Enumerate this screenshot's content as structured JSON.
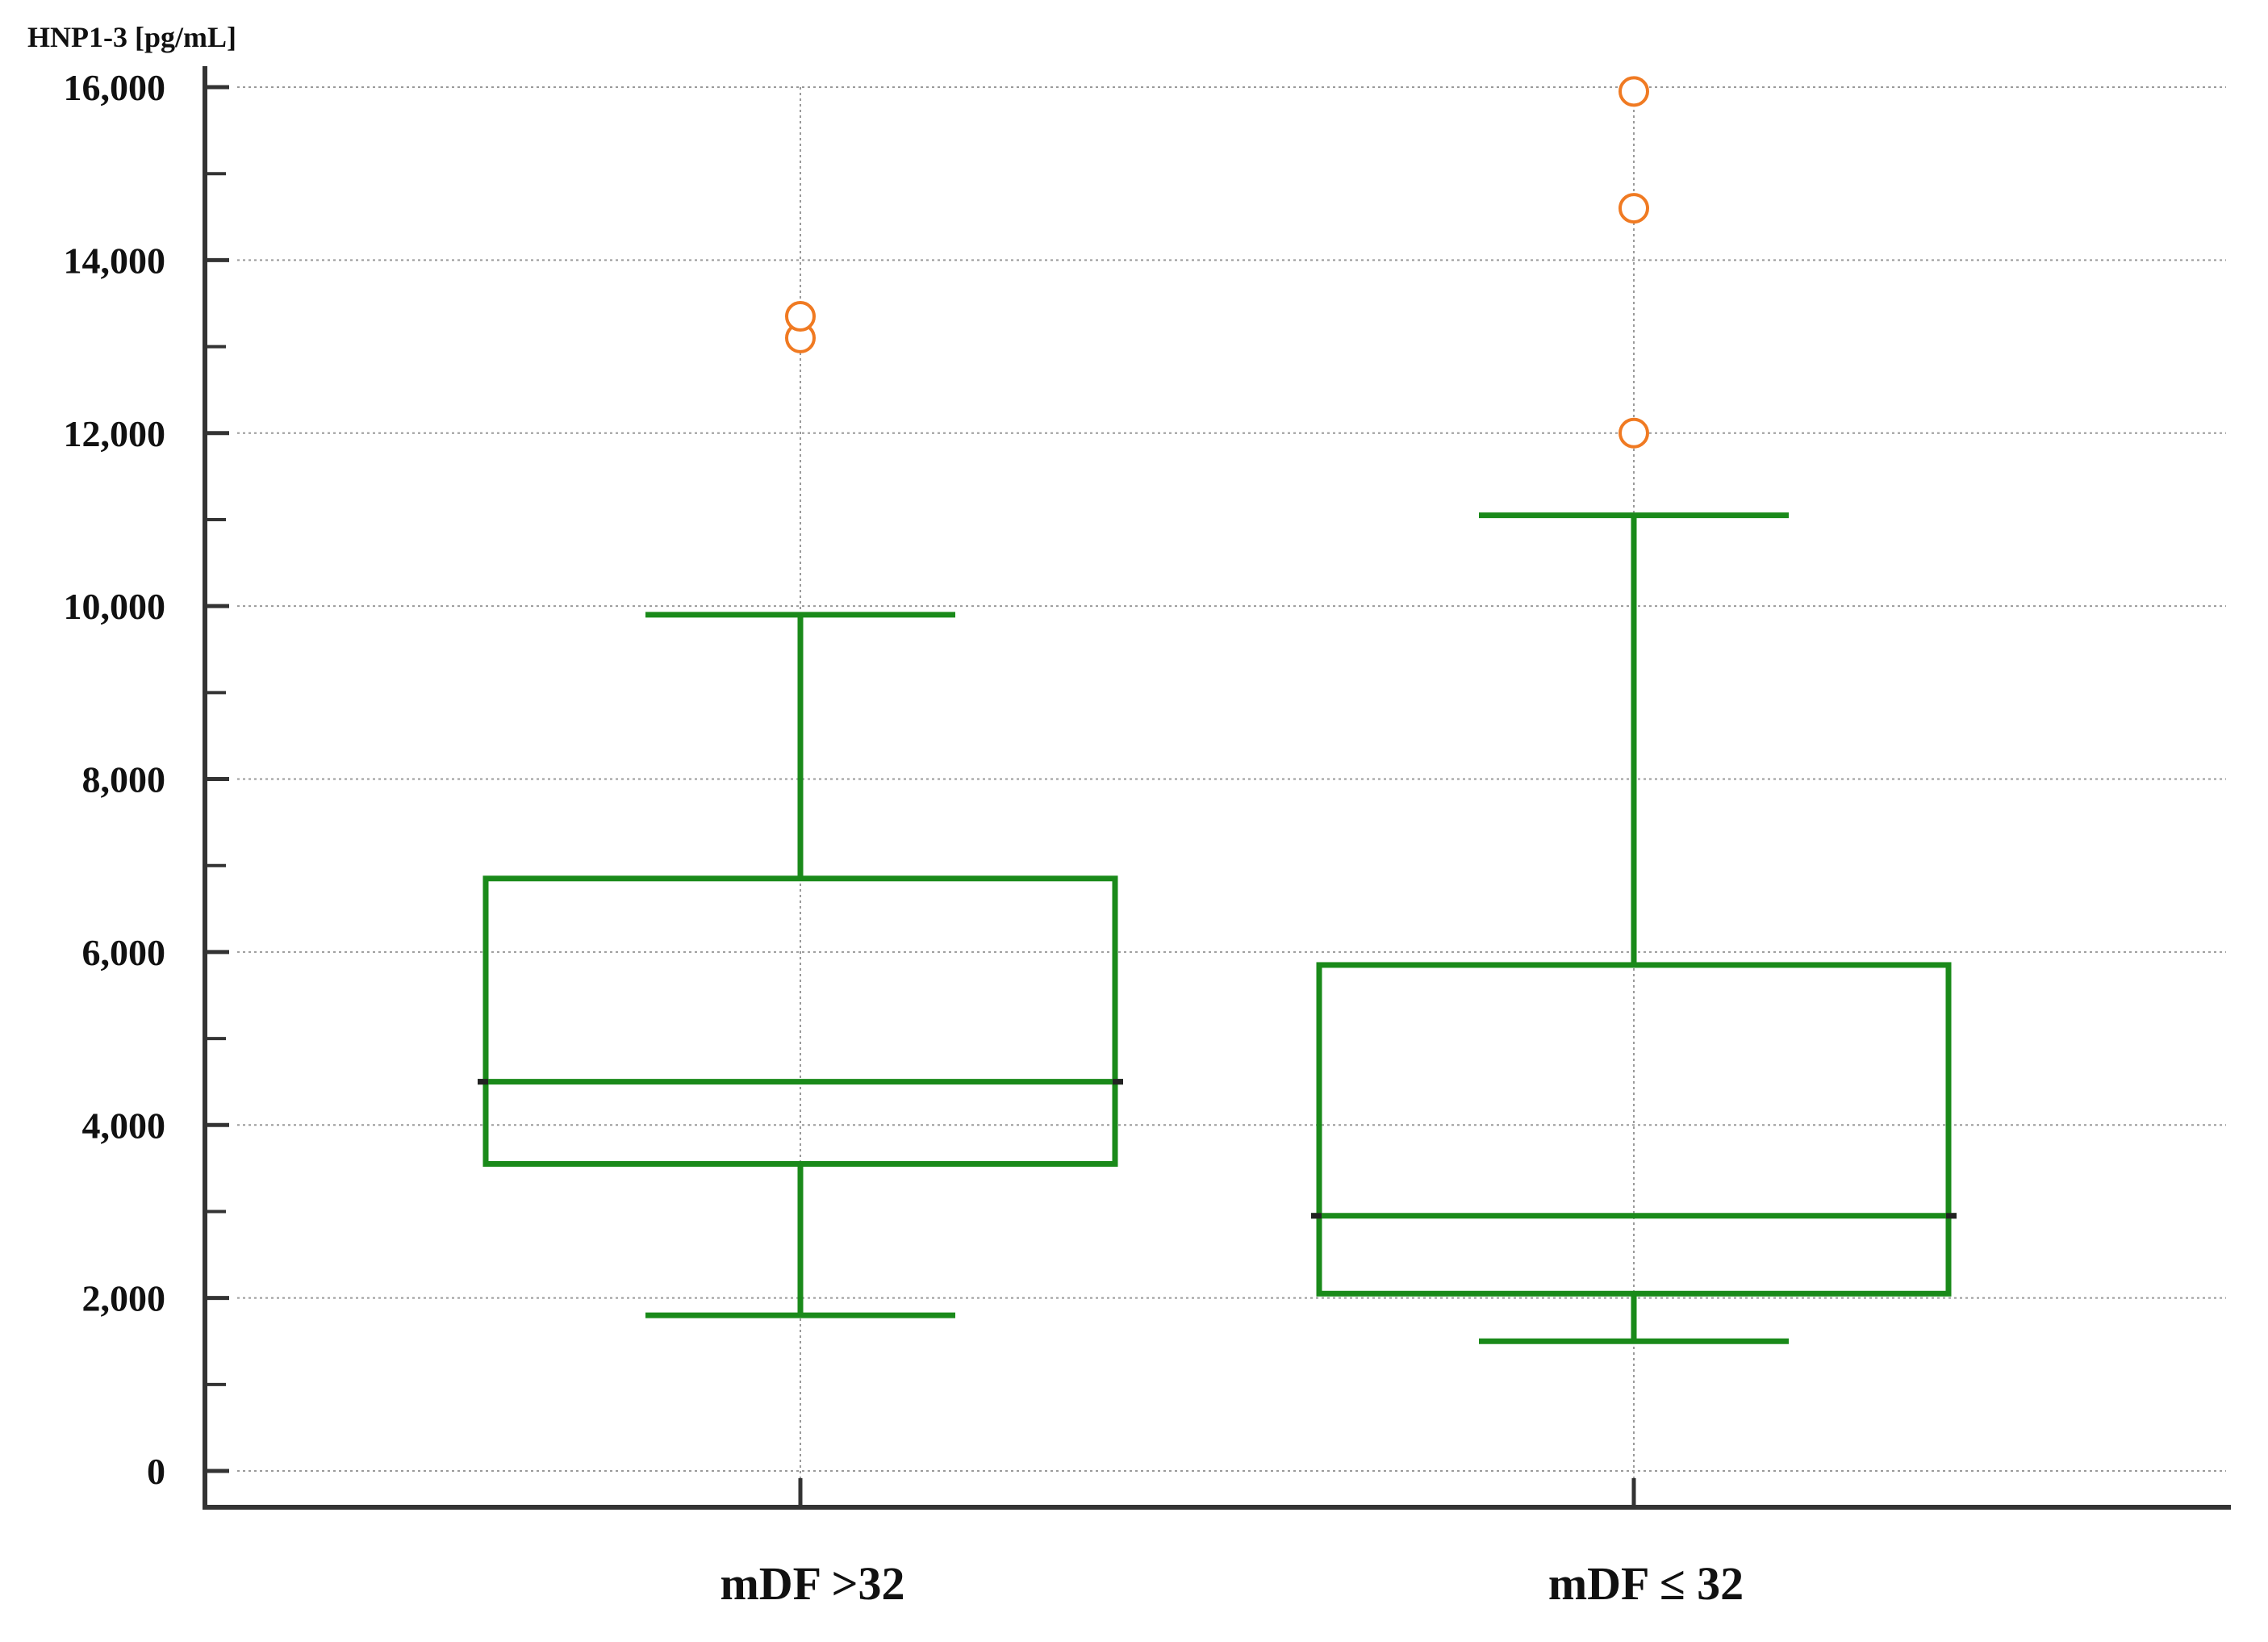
{
  "chart_data": {
    "type": "box",
    "title": "",
    "xlabel": "",
    "ylabel": "HNP1-3 [pg/mL]",
    "ylim": [
      0,
      16000
    ],
    "yticks": [
      0,
      2000,
      4000,
      6000,
      8000,
      10000,
      12000,
      14000,
      16000
    ],
    "ytick_labels": [
      "0",
      "2,000",
      "4,000",
      "6,000",
      "8,000",
      "10,000",
      "12,000",
      "14,000",
      "16,000"
    ],
    "grid": true,
    "categories": [
      "mDF >32",
      "mDF ≤ 32"
    ],
    "boxes": [
      {
        "category": "mDF >32",
        "whisker_low": 1800,
        "q1": 3550,
        "median": 4500,
        "q3": 6850,
        "whisker_high": 9900,
        "outliers": [
          13100,
          13350
        ]
      },
      {
        "category": "mDF ≤ 32",
        "whisker_low": 1500,
        "q1": 2050,
        "median": 2950,
        "q3": 5850,
        "whisker_high": 11050,
        "outliers": [
          12000,
          14600,
          15950
        ]
      }
    ],
    "colors": {
      "box": "#1a8a1a",
      "outlier": "#f07a22",
      "axis": "#333333",
      "grid": "#9a9a9a"
    }
  }
}
